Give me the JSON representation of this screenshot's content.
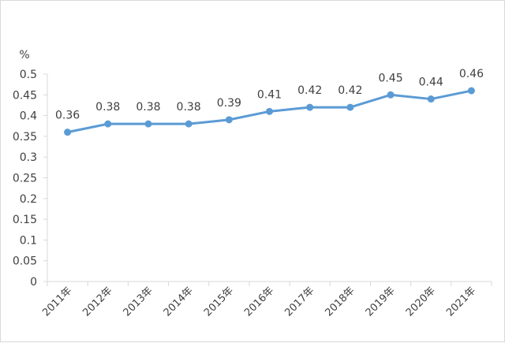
{
  "chart_data": {
    "type": "line",
    "title": "",
    "xlabel": "",
    "ylabel": "",
    "unit": "%",
    "categories": [
      "2011年",
      "2012年",
      "2013年",
      "2014年",
      "2015年",
      "2016年",
      "2017年",
      "2018年",
      "2019年",
      "2020年",
      "2021年"
    ],
    "series": [
      {
        "values": [
          0.36,
          0.38,
          0.38,
          0.38,
          0.39,
          0.41,
          0.42,
          0.42,
          0.45,
          0.44,
          0.46
        ]
      }
    ],
    "data_labels": [
      "0.36",
      "0.38",
      "0.38",
      "0.38",
      "0.39",
      "0.41",
      "0.42",
      "0.42",
      "0.45",
      "0.44",
      "0.46"
    ],
    "ylim": [
      0,
      0.5
    ],
    "y_ticks": [
      "0",
      "0.05",
      "0.1",
      "0.15",
      "0.2",
      "0.25",
      "0.3",
      "0.35",
      "0.4",
      "0.45",
      "0.5"
    ],
    "grid": false,
    "legend": "none",
    "line_color": "#5b9bd5",
    "axis_color": "#d9d9d9"
  }
}
